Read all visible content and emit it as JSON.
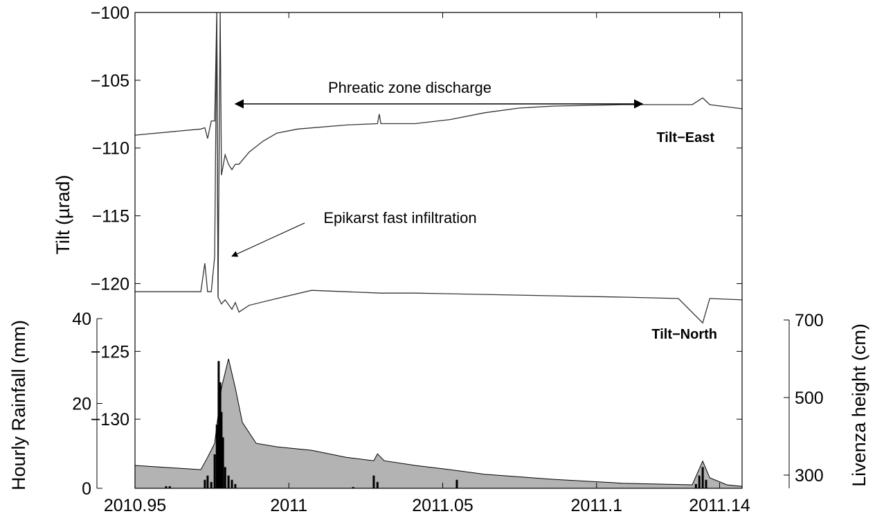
{
  "chart_data": [
    {
      "type": "line",
      "y_label": "Tilt (µrad)",
      "xlim": [
        2010.95,
        2011.1473
      ],
      "xticks": [
        2010.95,
        2011,
        2011.05,
        2011.1,
        2011.14
      ],
      "ylim": [
        -135.1,
        -100
      ],
      "yticks": [
        {
          "value": -100,
          "label": "−100"
        },
        {
          "value": -105,
          "label": "−105"
        },
        {
          "value": -110,
          "label": "−110"
        },
        {
          "value": -115,
          "label": "−115"
        },
        {
          "value": -120,
          "label": "−120"
        },
        {
          "value": -125,
          "label": "−125"
        },
        {
          "value": -130,
          "label": "−130"
        }
      ],
      "annotations": [
        "Phreatic zone discharge",
        "Epikarst fast infiltration"
      ],
      "series": [
        {
          "name": "Tilt−East",
          "color": "#333333",
          "x": [
            2010.95,
            2010.9714,
            2010.9727,
            2010.9736,
            2010.9748,
            2010.9759,
            2010.9766,
            2010.977,
            2010.9777,
            2010.9781,
            2010.9793,
            2010.9804,
            2010.9815,
            2010.9826,
            2010.9838,
            2010.9871,
            2010.9916,
            2010.9961,
            2011.0029,
            2011.0186,
            2011.0288,
            2011.0294,
            2011.0299,
            2011.0411,
            2011.0524,
            2011.0636,
            2011.0749,
            2011.0861,
            2011.1086,
            2011.1311,
            2011.1345,
            2011.1368,
            2011.1473
          ],
          "values": [
            -109.05,
            -108.6,
            -108.5,
            -109.3,
            -108.0,
            -108.0,
            -100,
            -121,
            -100,
            -112,
            -110.5,
            -111.2,
            -111.6,
            -111.2,
            -111.2,
            -110.3,
            -109.5,
            -108.9,
            -108.6,
            -108.3,
            -108.2,
            -107.5,
            -108.2,
            -108.2,
            -107.9,
            -107.4,
            -107.05,
            -106.9,
            -106.8,
            -106.8,
            -106.3,
            -106.8,
            -107.1
          ]
        },
        {
          "name": "Tilt−North",
          "color": "#333333",
          "x": [
            2010.95,
            2010.9714,
            2010.9727,
            2010.9736,
            2010.9748,
            2010.9759,
            2010.9766,
            2010.977,
            2010.9781,
            2010.9793,
            2010.9815,
            2010.9826,
            2010.9838,
            2010.9871,
            2010.9961,
            2011.0074,
            2011.0186,
            2011.0299,
            2011.0411,
            2011.0636,
            2011.0861,
            2011.1086,
            2011.1266,
            2011.1345,
            2011.1368,
            2011.1473
          ],
          "values": [
            -120.6,
            -120.6,
            -118.5,
            -120.6,
            -120.6,
            -118.0,
            -100,
            -121.0,
            -121.5,
            -121.2,
            -121.9,
            -121.4,
            -122.1,
            -121.6,
            -121.1,
            -120.5,
            -120.6,
            -120.7,
            -120.7,
            -120.8,
            -120.9,
            -121.0,
            -121.1,
            -122.9,
            -121.1,
            -121.2
          ]
        }
      ]
    },
    {
      "type": "bar",
      "y_label": "Hourly Rainfall (mm)",
      "color": "#000000",
      "ylim": [
        0,
        112.2
      ],
      "yticks": [
        0,
        20,
        40
      ],
      "x": [
        2010.9601,
        2010.9613,
        2010.9727,
        2010.9736,
        2010.9748,
        2010.9759,
        2010.9766,
        2010.9772,
        2010.9777,
        2010.9781,
        2010.9786,
        2010.9793,
        2010.9804,
        2010.9815,
        2010.9826,
        2011.0209,
        2011.0276,
        2011.0288,
        2011.0546,
        2011.1323,
        2011.1334,
        2011.1345,
        2011.1356
      ],
      "values": [
        0.5,
        0.5,
        2,
        3,
        1.5,
        8,
        15,
        30,
        25,
        18,
        12,
        5,
        3,
        2,
        1,
        0.3,
        3,
        1.5,
        2,
        1,
        3,
        5,
        2
      ]
    },
    {
      "type": "area",
      "y_label": "Livenza height (cm)",
      "color": "#b3b3b3",
      "ylim": [
        266,
        1493
      ],
      "yticks": [
        300,
        500,
        700
      ],
      "x": [
        2010.95,
        2010.9714,
        2010.9736,
        2010.9759,
        2010.9781,
        2010.9804,
        2010.9826,
        2010.9849,
        2010.9894,
        2010.9961,
        2011.0074,
        2011.0186,
        2011.0276,
        2011.0288,
        2011.031,
        2011.0411,
        2011.0524,
        2011.0636,
        2011.0861,
        2011.1086,
        2011.1311,
        2011.1345,
        2011.1368,
        2011.1424,
        2011.1473
      ],
      "values": [
        325,
        314,
        346,
        382,
        525,
        600,
        525,
        436,
        382,
        373,
        364,
        346,
        337,
        355,
        337,
        325,
        314,
        302,
        289,
        279,
        275,
        336,
        293,
        275,
        271
      ]
    }
  ]
}
